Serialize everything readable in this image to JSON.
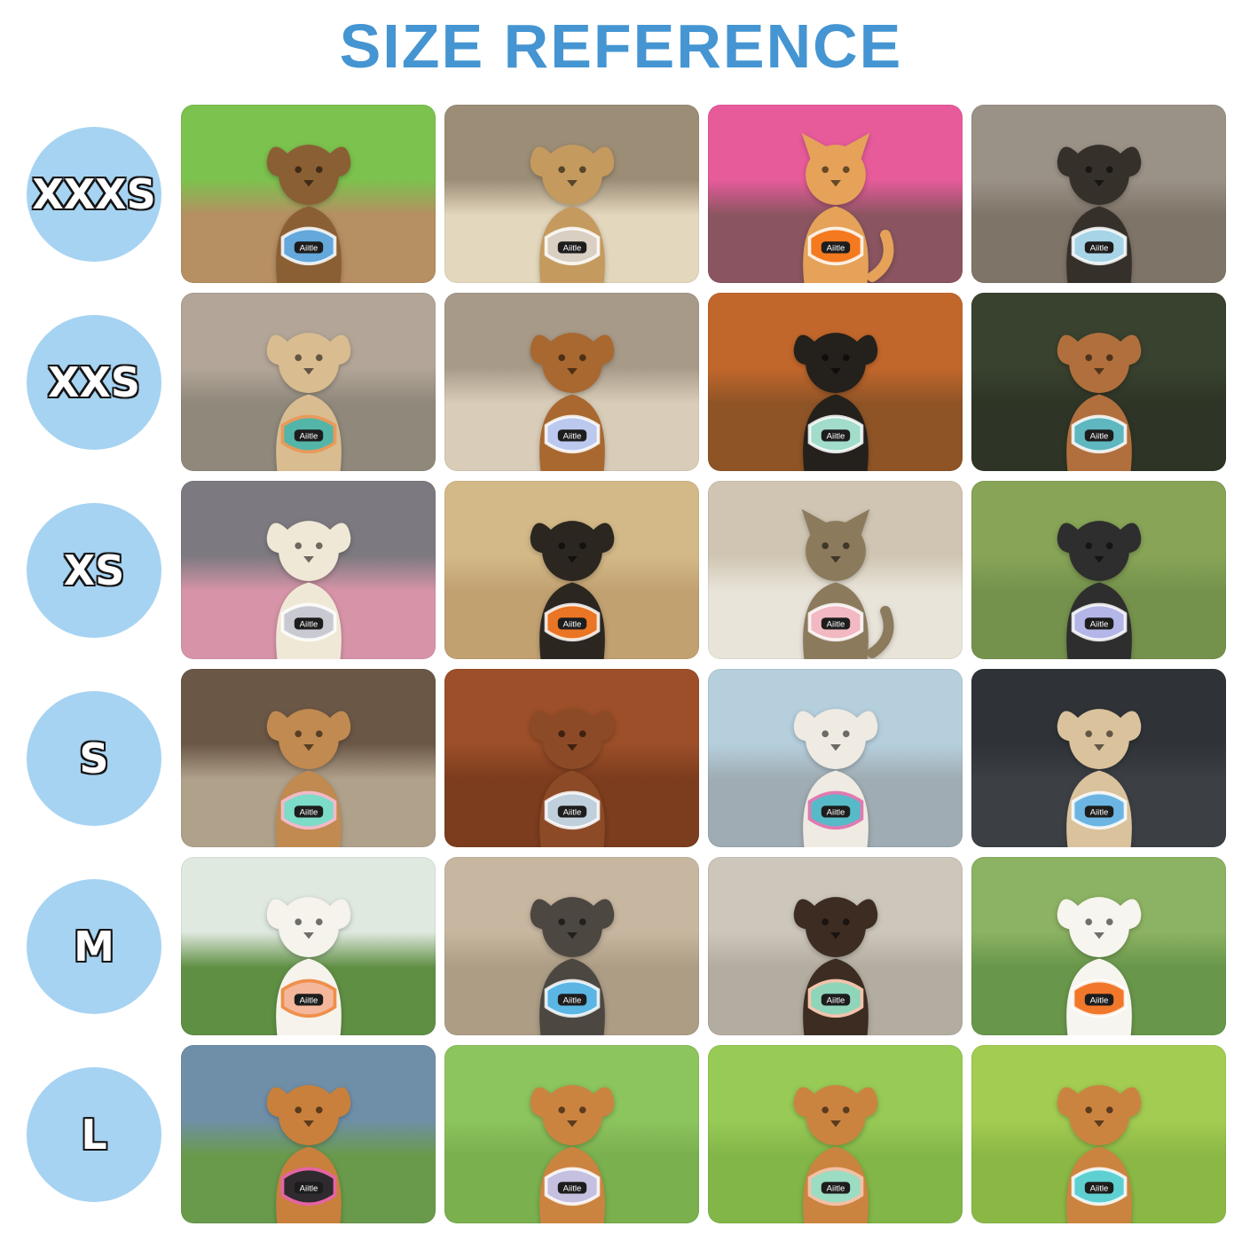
{
  "page": {
    "title": "SIZE REFERENCE"
  },
  "colors": {
    "title_text": "#4495d2",
    "badge_background": "#a6d3f1",
    "badge_text": "#ffffff",
    "badge_outline": "#151515",
    "page_background": "#ffffff"
  },
  "harness_brand_label": "Aiitle",
  "sizes": [
    {
      "label": "XXXS",
      "photos": [
        {
          "subject": "dog",
          "description": "Yorkshire terrier puppy in a blue plaid harness sitting on a wooden log in front of bright green grass",
          "top": "#7cc24e",
          "bottom": "#b68f62",
          "fur": "#8a5f33",
          "harness": "#64a8dc"
        },
        {
          "subject": "dog",
          "description": "Fluffy tan puppy in a beige harness lying on a speckled cream blanket",
          "top": "#9c8d76",
          "bottom": "#e3d7bd",
          "fur": "#c49a5e",
          "harness": "#d9cfc2"
        },
        {
          "subject": "cat",
          "description": "Orange tabby kitten in an orange plaid-trim harness sitting in front of a pink pet carrier",
          "top": "#e75b9b",
          "bottom": "#8a5560",
          "fur": "#e5a258",
          "harness": "#f5791f"
        },
        {
          "subject": "dog",
          "description": "Black-and-tan yorkie puppy in a light blue harness seen from above beside a person's sandal",
          "top": "#9b9287",
          "bottom": "#7f7468",
          "fur": "#35302a",
          "harness": "#a8d4e8"
        }
      ]
    },
    {
      "label": "XXS",
      "photos": [
        {
          "subject": "dog",
          "description": "Fawn puppy in a teal and orange harness facing the camera on a shaggy taupe rug",
          "top": "#b3a698",
          "bottom": "#8f887b",
          "fur": "#d9bc90",
          "harness": "#53b5a8",
          "accent": "#e89a5a"
        },
        {
          "subject": "dog",
          "description": "Red-brown yorkipoo in a periwinkle harness sitting on a beige tile floor",
          "top": "#a89a88",
          "bottom": "#d9cdb9",
          "fur": "#a9682f",
          "harness": "#bcc9ee"
        },
        {
          "subject": "dog",
          "description": "Black fluffy puppy in a mint harness with matching leash sitting on orange autumn leaves",
          "top": "#c2672b",
          "bottom": "#8f5426",
          "fur": "#24201c",
          "harness": "#a2dcca"
        },
        {
          "subject": "dog",
          "description": "Tan chihuahua in a teal harness sleeping curled on tropical leaf-print fabric",
          "top": "#39412f",
          "bottom": "#2e3526",
          "fur": "#b06f3c",
          "harness": "#5fb7bf"
        }
      ]
    },
    {
      "label": "XS",
      "photos": [
        {
          "subject": "dog",
          "description": "White maltipoo puppy close up in a gray harness with a pink blanket below",
          "top": "#7c7a80",
          "bottom": "#d794a8",
          "fur": "#f0e8d6",
          "harness": "#c9c9d2"
        },
        {
          "subject": "dog",
          "description": "Black-and-cream shiba puppy in an orange harness lying on beach sand",
          "top": "#d3b987",
          "bottom": "#c2a171",
          "fur": "#2b2620",
          "harness": "#ea7524"
        },
        {
          "subject": "cat",
          "description": "Brown tabby cat in a pink harness lying on a white windowsill looking out the window",
          "top": "#cfc5b2",
          "bottom": "#e9e4da",
          "fur": "#8c7a5c",
          "harness": "#f2b9c2"
        },
        {
          "subject": "dog",
          "description": "Black-and-white puppy in a lavender harness sitting on dry grass with a gray leash",
          "top": "#87a457",
          "bottom": "#75924c",
          "fur": "#2e2e2e",
          "harness": "#b3b6e6"
        }
      ]
    },
    {
      "label": "S",
      "photos": [
        {
          "subject": "dog",
          "description": "Tan chihuahua in profile wearing a mint harness with pink floral trim on tan tile",
          "top": "#6b5746",
          "bottom": "#b0a18b",
          "fur": "#c08a50",
          "harness": "#7cdcc8",
          "accent": "#f2b9c8"
        },
        {
          "subject": "dog",
          "description": "Red toy poodle in a light blue-gray harness lying on a glossy wood floor",
          "top": "#9c4f28",
          "bottom": "#7c3c1e",
          "fur": "#8c4a26",
          "harness": "#bfd0dc"
        },
        {
          "subject": "dog",
          "description": "White sheepadoodle in a teal harness with pink leash sitting on pavement at dusk",
          "top": "#b6cfdd",
          "bottom": "#9facb3",
          "fur": "#efeae2",
          "harness": "#57bac9",
          "accent": "#e07ab0"
        },
        {
          "subject": "dog",
          "description": "Tan puppy in a blue harness sitting in a black car seat looking up",
          "top": "#2f3337",
          "bottom": "#3c4045",
          "fur": "#d9c29c",
          "harness": "#6cb5e2"
        }
      ]
    },
    {
      "label": "M",
      "photos": [
        {
          "subject": "dog",
          "description": "White bichon frise in a peach harness with orange leash panting on green grass",
          "top": "#dfe9df",
          "bottom": "#5f8f43",
          "fur": "#f5f3ec",
          "harness": "#f4b79c",
          "accent": "#ef8f4b"
        },
        {
          "subject": "dog",
          "description": "Gray shaggy dog in a sky-blue harness with handle seen from behind walking on sand",
          "top": "#c7b7a0",
          "bottom": "#ad9d85",
          "fur": "#4c4741",
          "harness": "#5cb6e4"
        },
        {
          "subject": "dog",
          "description": "Chocolate poodle in a mint and peach harness with green leash beside a beige wall",
          "top": "#cdc6bb",
          "bottom": "#b3aca0",
          "fur": "#3c2c22",
          "harness": "#8fd5ba",
          "accent": "#f2c3ab"
        },
        {
          "subject": "dog",
          "description": "White bichon frise in an orange harness with tongue out on green grass",
          "top": "#8cb263",
          "bottom": "#68964a",
          "fur": "#f7f5ef",
          "harness": "#f1782a"
        }
      ]
    },
    {
      "label": "L",
      "photos": [
        {
          "subject": "dog",
          "description": "Shiba inu in profile in a black and pink harness panting beside a person in blue jeans",
          "top": "#6f8fa8",
          "bottom": "#699a4b",
          "fur": "#c8803c",
          "harness": "#2e2a2e",
          "accent": "#e564a4"
        },
        {
          "subject": "dog",
          "description": "Shiba inu in a lavender harness with white leash sitting in green grass",
          "top": "#8cc45e",
          "bottom": "#7ab04e",
          "fur": "#cb8440",
          "harness": "#c6c0e0"
        },
        {
          "subject": "dog",
          "description": "Shiba inu in a mint and peach harness panting among tall grass",
          "top": "#98ca56",
          "bottom": "#83b648",
          "fur": "#cb8440",
          "harness": "#9cdcc2",
          "accent": "#f3c0a6"
        },
        {
          "subject": "dog",
          "description": "Shiba inu in an aqua harness with blue leash sitting in tall grass",
          "top": "#a3cc52",
          "bottom": "#8bb845",
          "fur": "#cb8440",
          "harness": "#5ed0d2"
        }
      ]
    }
  ]
}
